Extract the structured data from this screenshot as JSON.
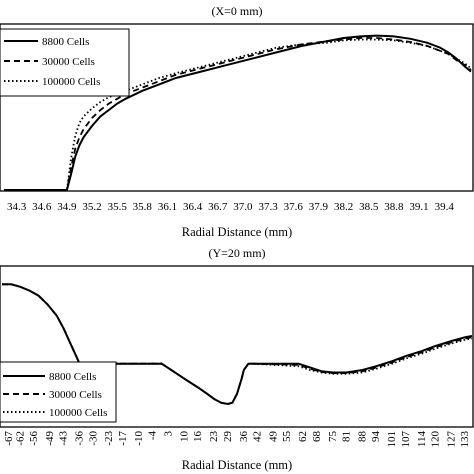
{
  "chart_data": [
    {
      "type": "line",
      "title": "(X=0 mm)",
      "xlabel": "Radial Distance (mm)",
      "ylabel": "",
      "x_tick_labels": [
        "34.3",
        "34.6",
        "34.9",
        "35.2",
        "35.5",
        "35.8",
        "36.1",
        "36.4",
        "36.7",
        "37.0",
        "37.3",
        "37.6",
        "37.9",
        "38.2",
        "38.5",
        "38.8",
        "39.1",
        "39.4"
      ],
      "x_data_range": [
        34.15,
        39.72
      ],
      "y_relative_range": [
        0,
        1
      ],
      "grid": false,
      "legend_position": "top-left",
      "series": [
        {
          "name": "8800 Cells",
          "style": "solid",
          "x": [
            34.15,
            34.9,
            34.95,
            35.0,
            35.05,
            35.1,
            35.2,
            35.3,
            35.4,
            35.5,
            35.6,
            35.8,
            36.0,
            36.2,
            36.5,
            36.8,
            37.1,
            37.4,
            37.7,
            38.0,
            38.2,
            38.4,
            38.6,
            38.8,
            39.0,
            39.2,
            39.35,
            39.45,
            39.55,
            39.65,
            39.72
          ],
          "y": [
            0,
            0,
            0.1,
            0.21,
            0.28,
            0.33,
            0.4,
            0.46,
            0.5,
            0.54,
            0.57,
            0.62,
            0.66,
            0.7,
            0.74,
            0.78,
            0.82,
            0.86,
            0.9,
            0.93,
            0.95,
            0.96,
            0.965,
            0.96,
            0.945,
            0.92,
            0.89,
            0.86,
            0.82,
            0.77,
            0.74
          ]
        },
        {
          "name": "30000 Cells",
          "style": "dashed",
          "x": [
            34.15,
            34.9,
            34.95,
            35.0,
            35.05,
            35.1,
            35.2,
            35.3,
            35.4,
            35.5,
            35.6,
            35.8,
            36.0,
            36.2,
            36.5,
            36.8,
            37.1,
            37.4,
            37.7,
            38.0,
            38.2,
            38.4,
            38.6,
            38.8,
            39.0,
            39.2,
            39.35,
            39.45,
            39.55,
            39.65,
            39.72
          ],
          "y": [
            0,
            0,
            0.14,
            0.26,
            0.33,
            0.38,
            0.45,
            0.5,
            0.54,
            0.57,
            0.6,
            0.64,
            0.68,
            0.72,
            0.76,
            0.8,
            0.84,
            0.88,
            0.91,
            0.93,
            0.94,
            0.95,
            0.95,
            0.94,
            0.925,
            0.9,
            0.87,
            0.85,
            0.81,
            0.78,
            0.75
          ]
        },
        {
          "name": "100000 Cells",
          "style": "dotted",
          "x": [
            34.15,
            34.9,
            34.95,
            35.0,
            35.05,
            35.1,
            35.2,
            35.3,
            35.4,
            35.5,
            35.6,
            35.8,
            36.0,
            36.2,
            36.5,
            36.8,
            37.1,
            37.4,
            37.7,
            38.0,
            38.2,
            38.4,
            38.6,
            38.8,
            39.0,
            39.2,
            39.35,
            39.45,
            39.55,
            39.65,
            39.72
          ],
          "y": [
            0,
            0,
            0.2,
            0.34,
            0.42,
            0.46,
            0.51,
            0.55,
            0.58,
            0.6,
            0.62,
            0.66,
            0.7,
            0.73,
            0.77,
            0.81,
            0.85,
            0.89,
            0.91,
            0.92,
            0.935,
            0.94,
            0.94,
            0.935,
            0.92,
            0.9,
            0.87,
            0.85,
            0.82,
            0.79,
            0.76
          ]
        }
      ]
    },
    {
      "type": "line",
      "title": "(Y=20 mm)",
      "xlabel": "Radial Distance (mm)",
      "ylabel": "",
      "x_tick_labels": [
        "-67",
        "-62",
        "-56",
        "-49",
        "-43",
        "-36",
        "-30",
        "-23",
        "-17",
        "-10",
        "-4",
        "3",
        "10",
        "16",
        "23",
        "29",
        "36",
        "42",
        "49",
        "55",
        "62",
        "68",
        "75",
        "81",
        "88",
        "94",
        "101",
        "107",
        "114",
        "120",
        "127",
        "133"
      ],
      "x_data_range": [
        -70,
        136
      ],
      "y_relative_range": [
        0,
        1
      ],
      "grid": false,
      "legend_position": "bottom-left",
      "series": [
        {
          "name": "8800 Cells",
          "style": "solid",
          "x": [
            -70,
            -66,
            -62,
            -58,
            -54,
            -50,
            -46,
            -43,
            -40,
            -37,
            -36,
            0,
            5,
            10,
            16,
            20,
            23,
            26,
            29,
            31,
            33,
            35,
            36,
            38,
            40,
            60,
            65,
            70,
            75,
            81,
            88,
            94,
            101,
            107,
            114,
            120,
            127,
            133,
            136
          ],
          "y": [
            0.95,
            0.95,
            0.93,
            0.9,
            0.86,
            0.79,
            0.7,
            0.6,
            0.48,
            0.36,
            0.32,
            0.32,
            0.26,
            0.2,
            0.13,
            0.08,
            0.04,
            0.01,
            0.0,
            0.01,
            0.08,
            0.2,
            0.27,
            0.32,
            0.32,
            0.32,
            0.29,
            0.26,
            0.25,
            0.25,
            0.27,
            0.3,
            0.34,
            0.38,
            0.42,
            0.46,
            0.5,
            0.53,
            0.54
          ]
        },
        {
          "name": "30000 Cells",
          "style": "dashed",
          "x": [
            -70,
            -66,
            -62,
            -58,
            -54,
            -50,
            -46,
            -43,
            -40,
            -37,
            -36,
            0,
            5,
            10,
            16,
            20,
            23,
            26,
            29,
            31,
            33,
            35,
            36,
            38,
            40,
            60,
            65,
            70,
            75,
            81,
            88,
            94,
            101,
            107,
            114,
            120,
            127,
            133,
            136
          ],
          "y": [
            0.95,
            0.95,
            0.93,
            0.9,
            0.86,
            0.79,
            0.7,
            0.6,
            0.48,
            0.36,
            0.32,
            0.32,
            0.26,
            0.2,
            0.13,
            0.08,
            0.04,
            0.01,
            0.0,
            0.01,
            0.08,
            0.2,
            0.27,
            0.32,
            0.32,
            0.31,
            0.28,
            0.255,
            0.245,
            0.245,
            0.26,
            0.29,
            0.33,
            0.37,
            0.41,
            0.45,
            0.49,
            0.52,
            0.53
          ]
        },
        {
          "name": "100000 Cells",
          "style": "dotted",
          "x": [
            -70,
            -66,
            -62,
            -58,
            -54,
            -50,
            -46,
            -43,
            -40,
            -37,
            -36,
            0,
            5,
            10,
            16,
            20,
            23,
            26,
            29,
            31,
            33,
            35,
            36,
            38,
            40,
            60,
            65,
            70,
            75,
            81,
            88,
            94,
            101,
            107,
            114,
            120,
            127,
            133,
            136
          ],
          "y": [
            0.95,
            0.95,
            0.93,
            0.9,
            0.86,
            0.79,
            0.7,
            0.6,
            0.48,
            0.36,
            0.32,
            0.32,
            0.26,
            0.2,
            0.13,
            0.08,
            0.04,
            0.01,
            0.0,
            0.01,
            0.08,
            0.2,
            0.27,
            0.32,
            0.32,
            0.3,
            0.27,
            0.25,
            0.24,
            0.24,
            0.25,
            0.28,
            0.32,
            0.36,
            0.4,
            0.44,
            0.48,
            0.51,
            0.52
          ]
        }
      ]
    }
  ]
}
